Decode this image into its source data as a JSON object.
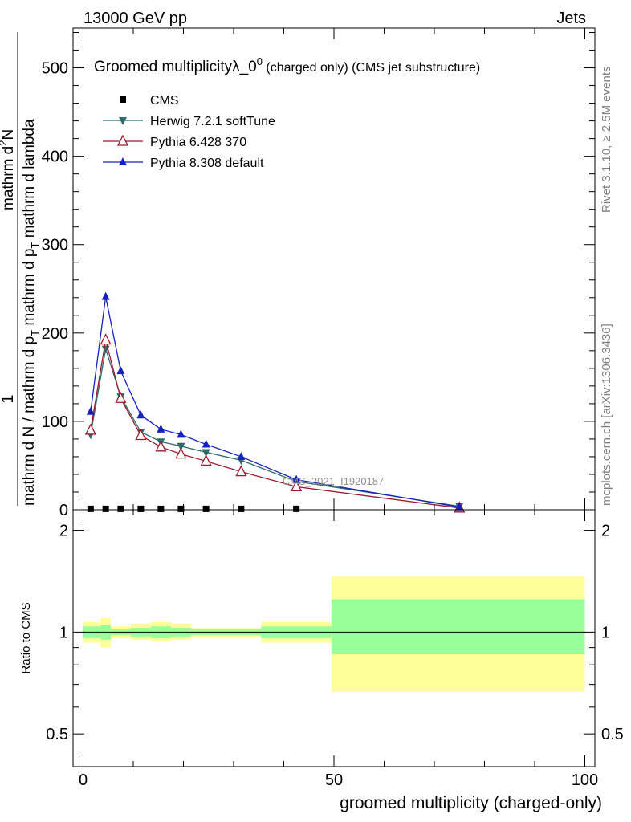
{
  "header": {
    "energy_label": "13000 GeV pp",
    "process_label": "Jets"
  },
  "side_labels": {
    "rivet": "Rivet 3.1.10, ≥ 2.5M events",
    "mcplots": "mcplots.cern.ch [arXiv:1306.3436]"
  },
  "watermark": "CMS_2021_I1920187",
  "chart_data": [
    {
      "type": "line",
      "panel": "main",
      "title_main": "Groomed multiplicityλ_0",
      "title_sup": "0",
      "title_paren1": " (charged only)",
      "title_paren2": " (CMS jet substructure)",
      "ylabel": {
        "numerator": "1",
        "line1": "mathrm d N / mathrm d p",
        "line1_sub": "T",
        "line1_tail": " mathrm d p",
        "line1_sub2": "T",
        "line1_tail2": " mathrm d lambda",
        "line2": "mathrm d",
        "line2_sup": "2",
        "line2_tail": "N"
      },
      "xlim": [
        -2,
        102
      ],
      "ylim": [
        0,
        545
      ],
      "yticks": [
        0,
        100,
        200,
        300,
        400,
        500
      ],
      "legend": {
        "placement": "top-left",
        "entries": [
          {
            "label": "CMS",
            "marker": "square",
            "color": "#000000"
          },
          {
            "label": "Herwig 7.2.1 softTune",
            "marker": "triangle-down",
            "color": "#2e6b6b"
          },
          {
            "label": "Pythia 6.428 370",
            "marker": "triangle-open",
            "color": "#a0182e"
          },
          {
            "label": "Pythia 8.308 default",
            "marker": "triangle-up",
            "color": "#1620c0"
          }
        ]
      },
      "series": [
        {
          "name": "CMS",
          "color": "#000000",
          "marker": "square",
          "x": [
            1.5,
            4.5,
            7.5,
            11.5,
            15.5,
            19.5,
            24.5,
            31.5,
            42.5
          ],
          "y": [
            1,
            1,
            1,
            1,
            1,
            1,
            1,
            1,
            1
          ]
        },
        {
          "name": "Herwig 7.2.1 softTune",
          "color": "#2e6b6b",
          "marker": "triangle-down",
          "x": [
            1.5,
            4.5,
            7.5,
            11.5,
            15.5,
            19.5,
            24.5,
            31.5,
            42.5,
            75
          ],
          "y": [
            85,
            182,
            128,
            88,
            77,
            72,
            65,
            56,
            32,
            4
          ]
        },
        {
          "name": "Pythia 6.428 370",
          "color": "#a0182e",
          "marker": "triangle-open",
          "x": [
            1.5,
            4.5,
            7.5,
            11.5,
            15.5,
            19.5,
            24.5,
            31.5,
            42.5,
            75
          ],
          "y": [
            90,
            192,
            126,
            84,
            71,
            63,
            55,
            43,
            26,
            2
          ]
        },
        {
          "name": "Pythia 8.308 default",
          "color": "#1620c0",
          "marker": "triangle-up",
          "x": [
            1.5,
            4.5,
            7.5,
            11.5,
            15.5,
            19.5,
            24.5,
            31.5,
            42.5,
            75
          ],
          "y": [
            111,
            241,
            157,
            107,
            91,
            85,
            74,
            60,
            34,
            3
          ]
        }
      ]
    },
    {
      "type": "area",
      "panel": "ratio",
      "xlabel": "groomed multiplicity (charged-only)",
      "ylabel": "Ratio to CMS",
      "xlim": [
        -2,
        102
      ],
      "ylim": [
        0.4,
        2.3
      ],
      "ytick_labels": [
        {
          "value": 0.5,
          "label": "0.5"
        },
        {
          "value": 1,
          "label": "1"
        },
        {
          "value": 2,
          "label": "2"
        }
      ],
      "xtick_labels": [
        {
          "value": 0,
          "label": "0"
        },
        {
          "value": 50,
          "label": "50"
        },
        {
          "value": 100,
          "label": "100"
        }
      ],
      "reference_line": 1,
      "bands": [
        {
          "x_lo": 0,
          "x_hi": 3.5,
          "outer": [
            0.93,
            1.07
          ],
          "inner": [
            0.96,
            1.04
          ]
        },
        {
          "x_lo": 3.5,
          "x_hi": 5.5,
          "outer": [
            0.9,
            1.1
          ],
          "inner": [
            0.95,
            1.05
          ]
        },
        {
          "x_lo": 5.5,
          "x_hi": 9.5,
          "outer": [
            0.96,
            1.04
          ],
          "inner": [
            0.98,
            1.02
          ]
        },
        {
          "x_lo": 9.5,
          "x_hi": 13.5,
          "outer": [
            0.95,
            1.06
          ],
          "inner": [
            0.97,
            1.03
          ]
        },
        {
          "x_lo": 13.5,
          "x_hi": 17.5,
          "outer": [
            0.94,
            1.07
          ],
          "inner": [
            0.96,
            1.04
          ]
        },
        {
          "x_lo": 17.5,
          "x_hi": 21.5,
          "outer": [
            0.95,
            1.06
          ],
          "inner": [
            0.97,
            1.03
          ]
        },
        {
          "x_lo": 21.5,
          "x_hi": 35.5,
          "outer": [
            0.97,
            1.03
          ],
          "inner": [
            0.98,
            1.02
          ]
        },
        {
          "x_lo": 35.5,
          "x_hi": 49.5,
          "outer": [
            0.93,
            1.07
          ],
          "inner": [
            0.96,
            1.04
          ]
        },
        {
          "x_lo": 49.5,
          "x_hi": 100,
          "outer": [
            0.665,
            1.46
          ],
          "inner": [
            0.86,
            1.25
          ]
        }
      ],
      "band_colors": {
        "outer": "#ffff99",
        "inner": "#99ff99"
      }
    }
  ]
}
